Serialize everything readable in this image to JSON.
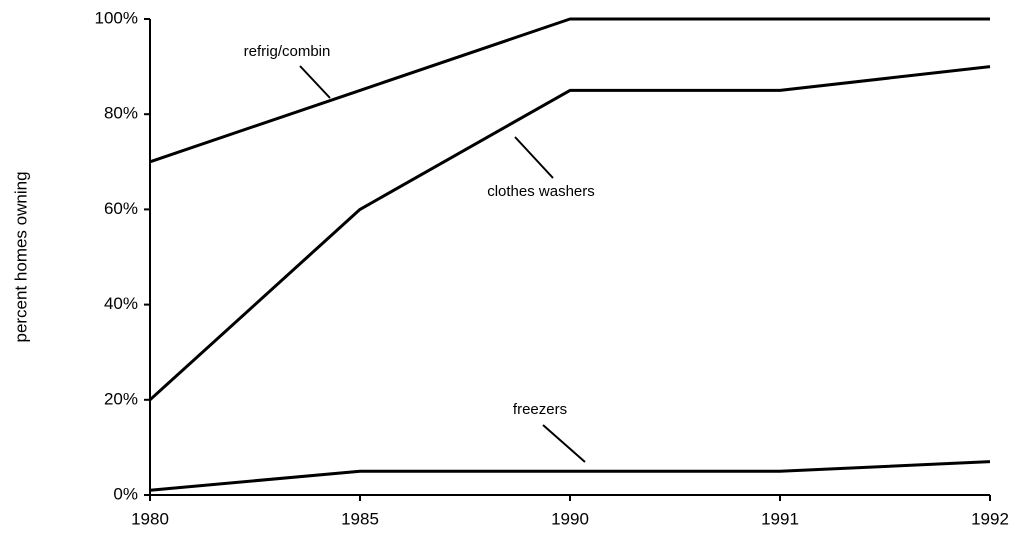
{
  "chart_data": {
    "type": "line",
    "categories": [
      "1980",
      "1985",
      "1990",
      "1991",
      "1992"
    ],
    "y_label": "percent homes owning",
    "series": [
      {
        "name": "refrig/combin",
        "color": "#000000",
        "values": [
          70,
          85,
          100,
          100,
          100
        ]
      },
      {
        "name": "clothes washers",
        "color": "#000000",
        "values": [
          20,
          60,
          85,
          85,
          90
        ]
      },
      {
        "name": "freezers",
        "color": "#000000",
        "values": [
          1,
          5,
          5,
          5,
          7
        ]
      }
    ],
    "ylim": [
      0,
      100
    ],
    "yticks": [
      {
        "value": 0,
        "label": "0%"
      },
      {
        "value": 20,
        "label": "20%"
      },
      {
        "value": 40,
        "label": "40%"
      },
      {
        "value": 60,
        "label": "60%"
      },
      {
        "value": 80,
        "label": "80%"
      },
      {
        "value": 100,
        "label": "100%"
      }
    ],
    "grid": false
  }
}
